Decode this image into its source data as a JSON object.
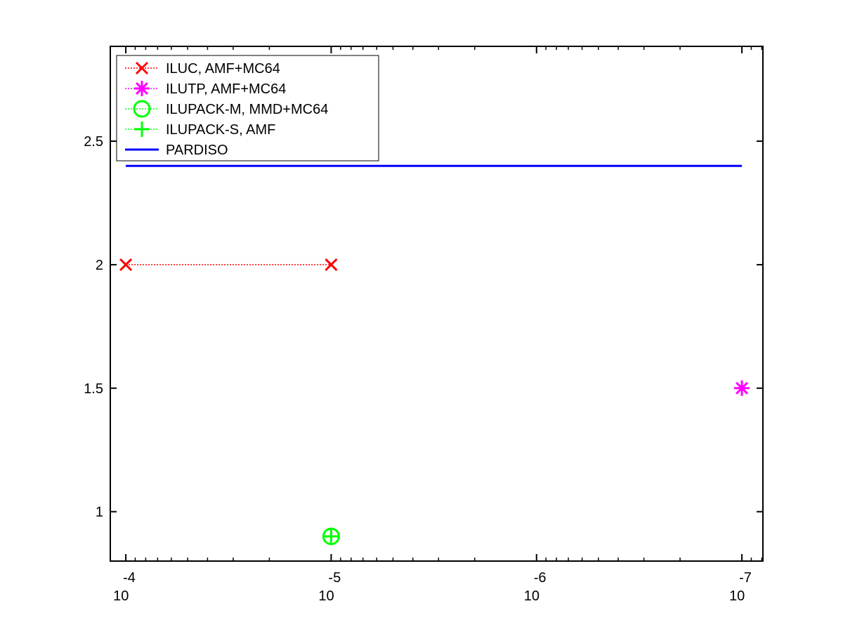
{
  "chart_data": {
    "type": "line",
    "xscale": "log",
    "xlim": [
      0.000119,
      7.9e-08
    ],
    "ylim": [
      0.8,
      2.884
    ],
    "xticks": [
      {
        "value": 0.0001,
        "label": "10",
        "exponent": "-4"
      },
      {
        "value": 1e-05,
        "label": "10",
        "exponent": "-5"
      },
      {
        "value": 1e-06,
        "label": "10",
        "exponent": "-6"
      },
      {
        "value": 1e-07,
        "label": "10",
        "exponent": "-7"
      }
    ],
    "yticks": [
      1,
      1.5,
      2,
      2.5
    ],
    "legend": "upper left",
    "series": [
      {
        "name": "ILUC, AMF+MC64",
        "color": "#ff0000",
        "marker": "x",
        "linestyle": "dotted",
        "x": [
          0.0001,
          1e-05
        ],
        "values": [
          2,
          2
        ]
      },
      {
        "name": "ILUTP, AMF+MC64",
        "color": "#ff00ff",
        "marker": "*",
        "linestyle": "dotted",
        "x": [
          1e-07
        ],
        "values": [
          1.5
        ]
      },
      {
        "name": "ILUPACK-M, MMD+MC64",
        "color": "#00ff00",
        "marker": "o",
        "linestyle": "dotted",
        "x": [
          1e-05
        ],
        "values": [
          0.9
        ]
      },
      {
        "name": "ILUPACK-S, AMF",
        "color": "#00ff00",
        "marker": "+",
        "linestyle": "dotted",
        "x": [
          1e-05
        ],
        "values": [
          0.9
        ]
      },
      {
        "name": "PARDISO",
        "color": "#0000ff",
        "marker": "none",
        "linestyle": "solid",
        "x": [
          0.0001,
          1e-07
        ],
        "values": [
          2.4,
          2.4
        ]
      }
    ]
  }
}
